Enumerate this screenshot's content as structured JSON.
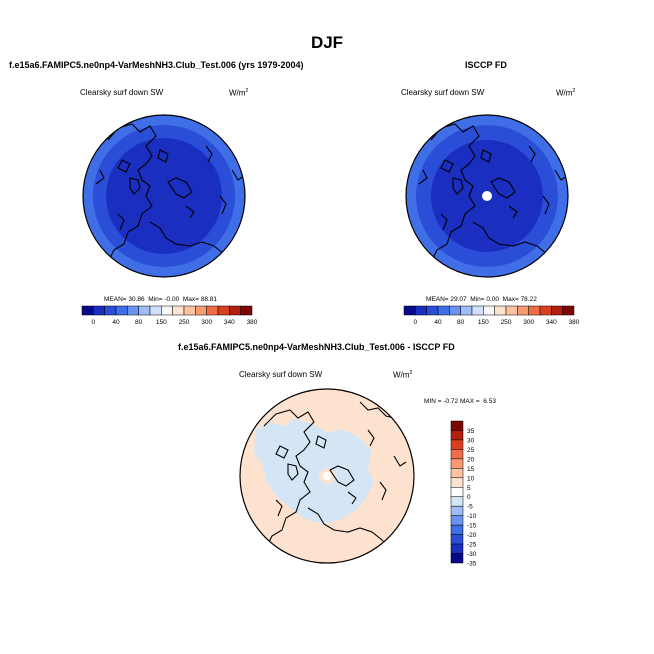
{
  "page": {
    "title": "DJF",
    "colors": {
      "land_outline": "#000000",
      "diff_positive": "#fde3cf",
      "diff_negative": "#d4e6f6"
    }
  },
  "panels": [
    {
      "title": "f.e15a6.FAMIPC5.ne0np4-VarMeshNH3.Club_Test.006 (yrs 1979-2004)",
      "variable": "Clearsky surf down SW",
      "units": "W/m",
      "units_sup": "2",
      "stats": {
        "mean_label": "MEAN=",
        "mean": "30.86",
        "min_label": "Min=",
        "min": "-0.00",
        "max_label": "Max=",
        "max": "88.81"
      },
      "colorbar": {
        "labels": [
          "0",
          "40",
          "80",
          "150",
          "250",
          "300",
          "340",
          "380"
        ],
        "colors": [
          "#08088a",
          "#1a2ec0",
          "#2b4ed8",
          "#3f6ee6",
          "#6a94f0",
          "#9fbcf6",
          "#d0e0fa",
          "#f7f7f7",
          "#fde3cf",
          "#fbc3a2",
          "#f79a72",
          "#ef6c46",
          "#d9401f",
          "#b31f10",
          "#7c0806"
        ]
      }
    },
    {
      "title": "ISCCP FD",
      "variable": "Clearsky surf down SW",
      "units": "W/m",
      "units_sup": "2",
      "stats": {
        "mean_label": "MEAN=",
        "mean": "29.07",
        "min_label": "Min=",
        "min": "0.00",
        "max_label": "Max=",
        "max": "78.22"
      },
      "colorbar": {
        "labels": [
          "0",
          "40",
          "80",
          "150",
          "250",
          "300",
          "340",
          "380"
        ],
        "colors": [
          "#08088a",
          "#1a2ec0",
          "#2b4ed8",
          "#3f6ee6",
          "#6a94f0",
          "#9fbcf6",
          "#d0e0fa",
          "#f7f7f7",
          "#fde3cf",
          "#fbc3a2",
          "#f79a72",
          "#ef6c46",
          "#d9401f",
          "#b31f10",
          "#7c0806"
        ]
      }
    },
    {
      "title": "f.e15a6.FAMIPC5.ne0np4-VarMeshNH3.Club_Test.006 - ISCCP FD",
      "variable": "Clearsky surf down SW",
      "units": "W/m",
      "units_sup": "2",
      "stats": {
        "min_label": "MIN =",
        "min": "-0.72",
        "max_label": "MAX =",
        "max": "6.53"
      },
      "colorbar": {
        "labels": [
          "35",
          "30",
          "25",
          "20",
          "15",
          "10",
          "5",
          "0",
          "-5",
          "-10",
          "-15",
          "-20",
          "-25",
          "-30",
          "-35"
        ],
        "colors": [
          "#7c0806",
          "#b31f10",
          "#d9401f",
          "#ef6c46",
          "#f79a72",
          "#fbc3a2",
          "#fde3cf",
          "#ffffff",
          "#d4e6f6",
          "#9fbcf6",
          "#6a94f0",
          "#3f6ee6",
          "#2b4ed8",
          "#1a2ec0",
          "#08088a"
        ]
      }
    }
  ]
}
